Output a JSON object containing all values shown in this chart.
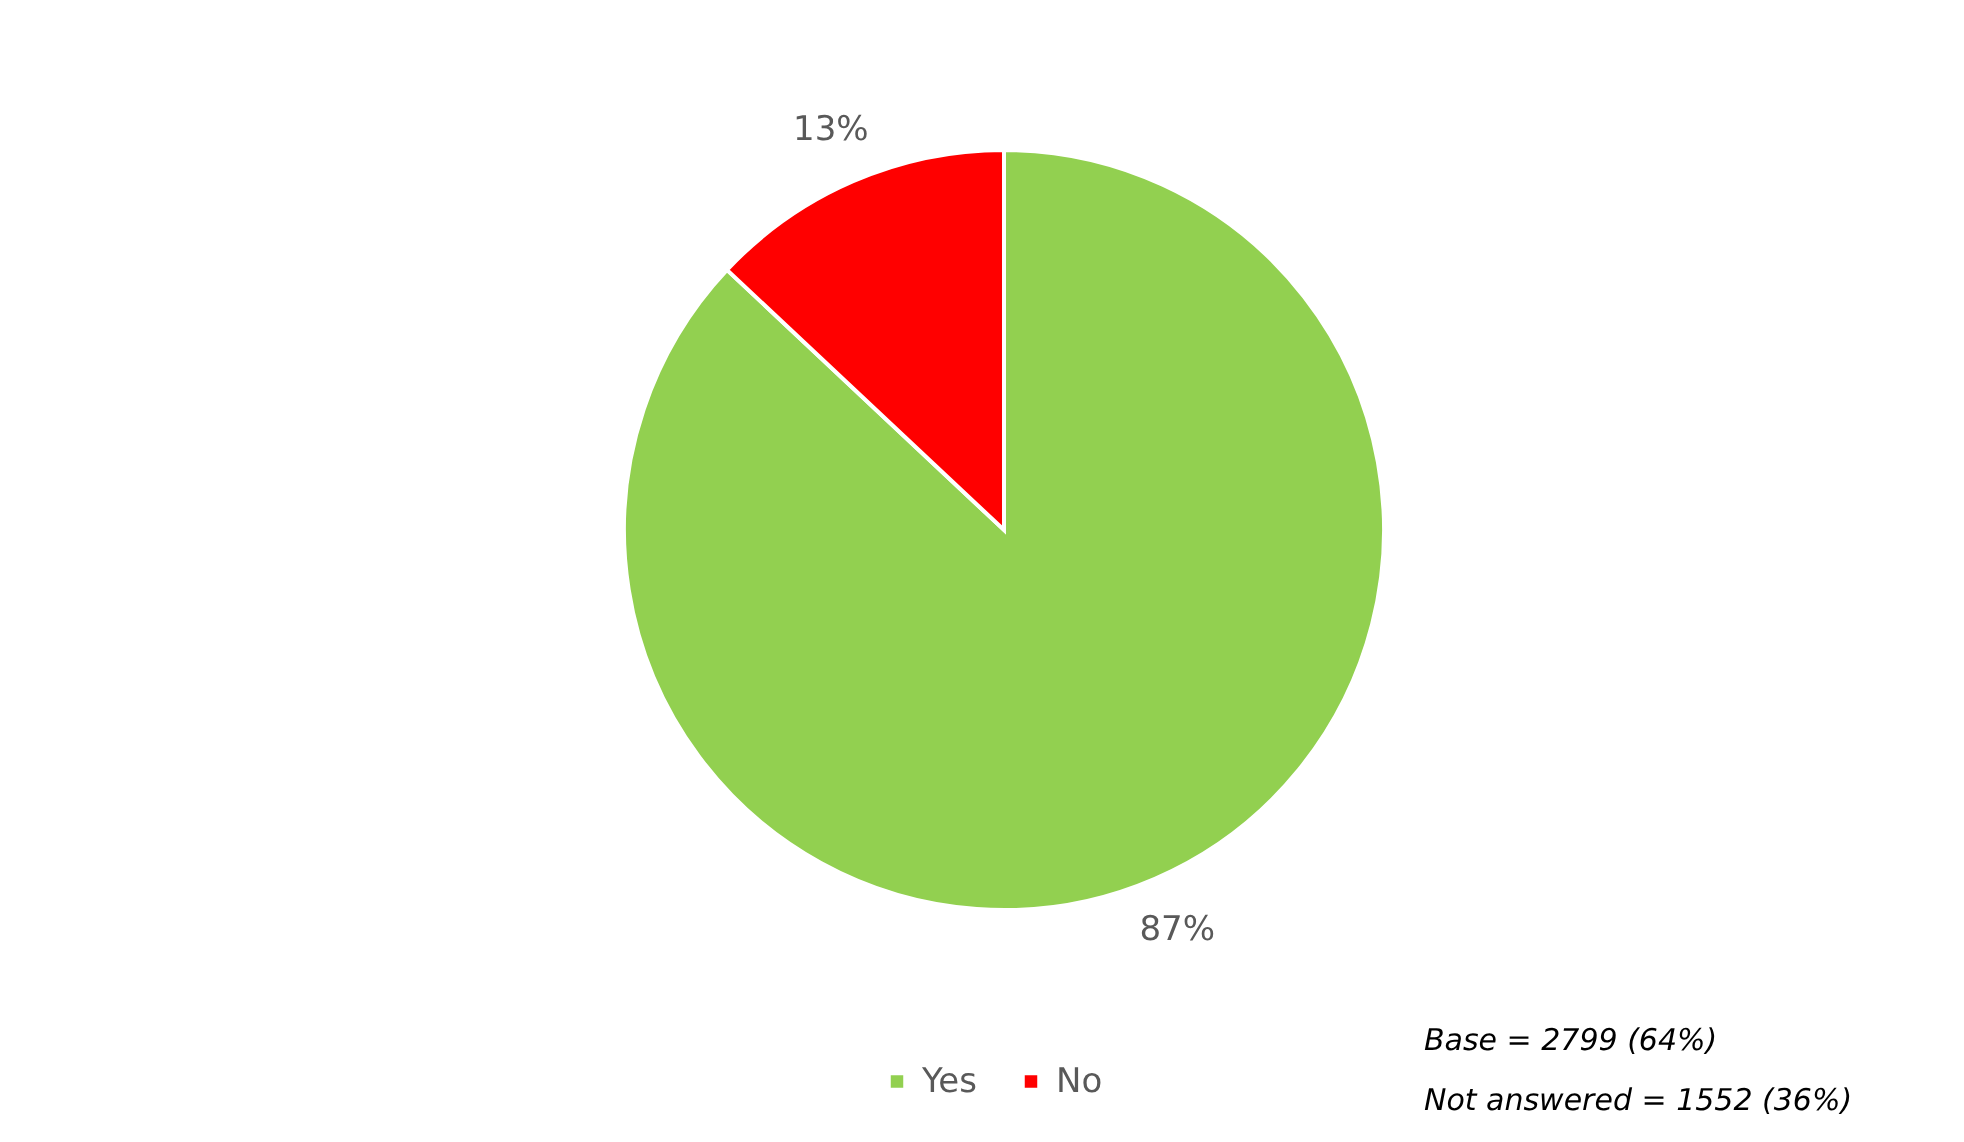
{
  "chart_data": {
    "type": "pie",
    "categories": [
      "Yes",
      "No"
    ],
    "values": [
      87,
      13
    ],
    "colors": [
      "#92d050",
      "#ff0000"
    ],
    "value_labels": [
      "87%",
      "13%"
    ],
    "legend": "bottom",
    "annotations": [
      "Base = 2799 (64%)",
      "Not answered = 1552 (36%)"
    ]
  }
}
